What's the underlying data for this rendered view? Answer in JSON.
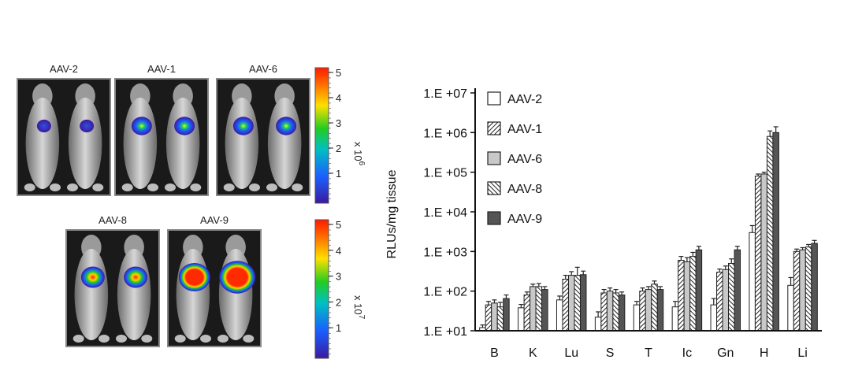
{
  "imaging": {
    "panels": [
      {
        "label": "AAV-2",
        "row": 0,
        "col": 0,
        "signal": 0.25
      },
      {
        "label": "AAV-1",
        "row": 0,
        "col": 1,
        "signal": 0.55
      },
      {
        "label": "AAV-6",
        "row": 0,
        "col": 2,
        "signal": 0.5
      },
      {
        "label": "AAV-8",
        "row": 1,
        "col": 0,
        "signal": 0.75
      },
      {
        "label": "AAV-9",
        "row": 1,
        "col": 1,
        "signal": 1.0
      }
    ],
    "colorbars": [
      {
        "ticks": [
          "5",
          "4",
          "3",
          "2",
          "1"
        ],
        "multiplier": "x 10",
        "exponent": "6"
      },
      {
        "ticks": [
          "5",
          "4",
          "3",
          "2",
          "1"
        ],
        "multiplier": "x 10",
        "exponent": "7"
      }
    ]
  },
  "chart_data": {
    "type": "bar",
    "ylabel": "RLUs/mg tissue",
    "yscale": "log",
    "ylim": [
      10,
      10000000
    ],
    "yticks": [
      "1.E +01",
      "1.E +02",
      "1.E +03",
      "1.E +04",
      "1.E +05",
      "1.E +06",
      "1.E +07"
    ],
    "categories": [
      "B",
      "K",
      "Lu",
      "S",
      "T",
      "Ic",
      "Gn",
      "H",
      "Li"
    ],
    "legend_position": "top-left",
    "series": [
      {
        "name": "AAV-2",
        "pattern": "white",
        "values": [
          12,
          38,
          60,
          22,
          45,
          40,
          45,
          3000,
          140
        ],
        "errors": [
          2,
          8,
          15,
          8,
          10,
          15,
          20,
          1500,
          80
        ]
      },
      {
        "name": "AAV-1",
        "pattern": "diag-hatch",
        "values": [
          45,
          80,
          200,
          90,
          100,
          600,
          300,
          80000,
          1000
        ],
        "errors": [
          10,
          15,
          50,
          20,
          20,
          150,
          60,
          10000,
          150
        ]
      },
      {
        "name": "AAV-6",
        "pattern": "light-gray",
        "values": [
          50,
          130,
          250,
          100,
          110,
          550,
          350,
          90000,
          1100
        ],
        "errors": [
          10,
          20,
          60,
          20,
          20,
          150,
          80,
          10000,
          150
        ]
      },
      {
        "name": "AAV-8",
        "pattern": "back-diag-hatch",
        "values": [
          40,
          130,
          250,
          90,
          150,
          750,
          500,
          800000,
          1300
        ],
        "errors": [
          12,
          25,
          150,
          20,
          30,
          200,
          150,
          300000,
          200
        ]
      },
      {
        "name": "AAV-9",
        "pattern": "dark-gray",
        "values": [
          65,
          110,
          260,
          80,
          110,
          1100,
          1100,
          1000000,
          1600
        ],
        "errors": [
          15,
          20,
          60,
          15,
          20,
          250,
          250,
          400000,
          300
        ]
      }
    ],
    "colors": {
      "bar_edge": "#222222",
      "white": "#ffffff",
      "light_gray": "#c8c8c8",
      "dark_gray": "#555555"
    }
  }
}
